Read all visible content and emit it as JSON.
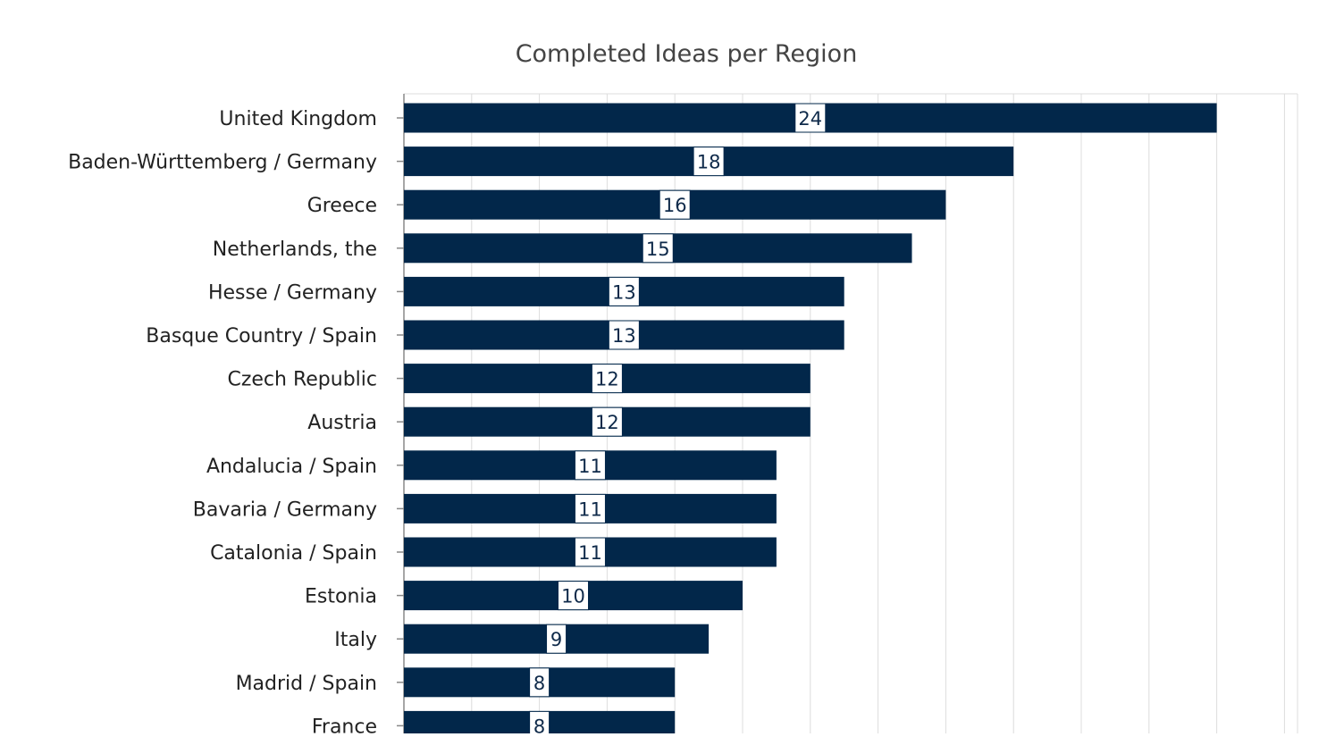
{
  "chart_data": {
    "type": "bar",
    "orientation": "horizontal",
    "title": "Completed Ideas per Region",
    "xlabel": "",
    "ylabel": "",
    "xlim": [
      0,
      26
    ],
    "grid": true,
    "legend": "none",
    "bar_color": "#02274a",
    "categories": [
      "United Kingdom",
      "Baden-Württemberg / Germany",
      "Greece",
      "Netherlands, the",
      "Hesse / Germany",
      "Basque Country / Spain",
      "Czech Republic",
      "Austria",
      "Andalucia / Spain",
      "Bavaria / Germany",
      "Catalonia / Spain",
      "Estonia",
      "Italy",
      "Madrid / Spain",
      "France"
    ],
    "values": [
      24,
      18,
      16,
      15,
      13,
      13,
      12,
      12,
      11,
      11,
      11,
      10,
      9,
      8,
      8
    ]
  }
}
